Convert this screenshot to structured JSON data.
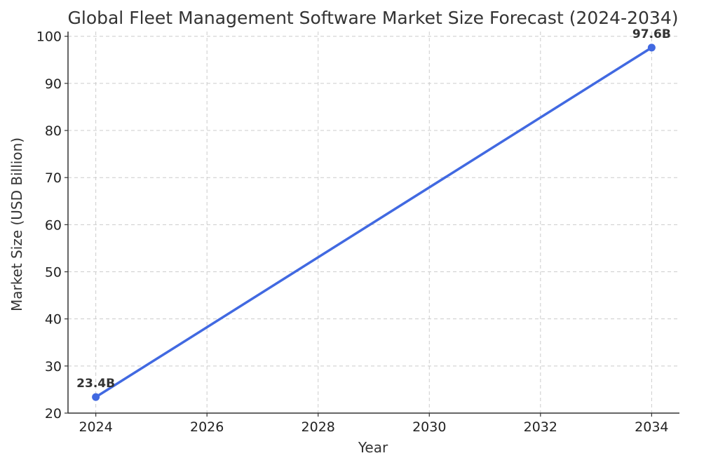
{
  "chart_data": {
    "type": "line",
    "title": "Global Fleet Management Software Market Size Forecast (2024-2034)",
    "xlabel": "Year",
    "ylabel": "Market Size (USD Billion)",
    "xlim": [
      2023.5,
      2034.5
    ],
    "ylim": [
      20,
      101
    ],
    "xticks": [
      2024,
      2026,
      2028,
      2030,
      2032,
      2034
    ],
    "yticks": [
      20,
      30,
      40,
      50,
      60,
      70,
      80,
      90,
      100
    ],
    "grid": true,
    "series": [
      {
        "x": [
          2024,
          2034
        ],
        "values": [
          23.4,
          97.6
        ],
        "labels": [
          "23.4B",
          "97.6B"
        ],
        "color": "#4169e1"
      }
    ]
  }
}
